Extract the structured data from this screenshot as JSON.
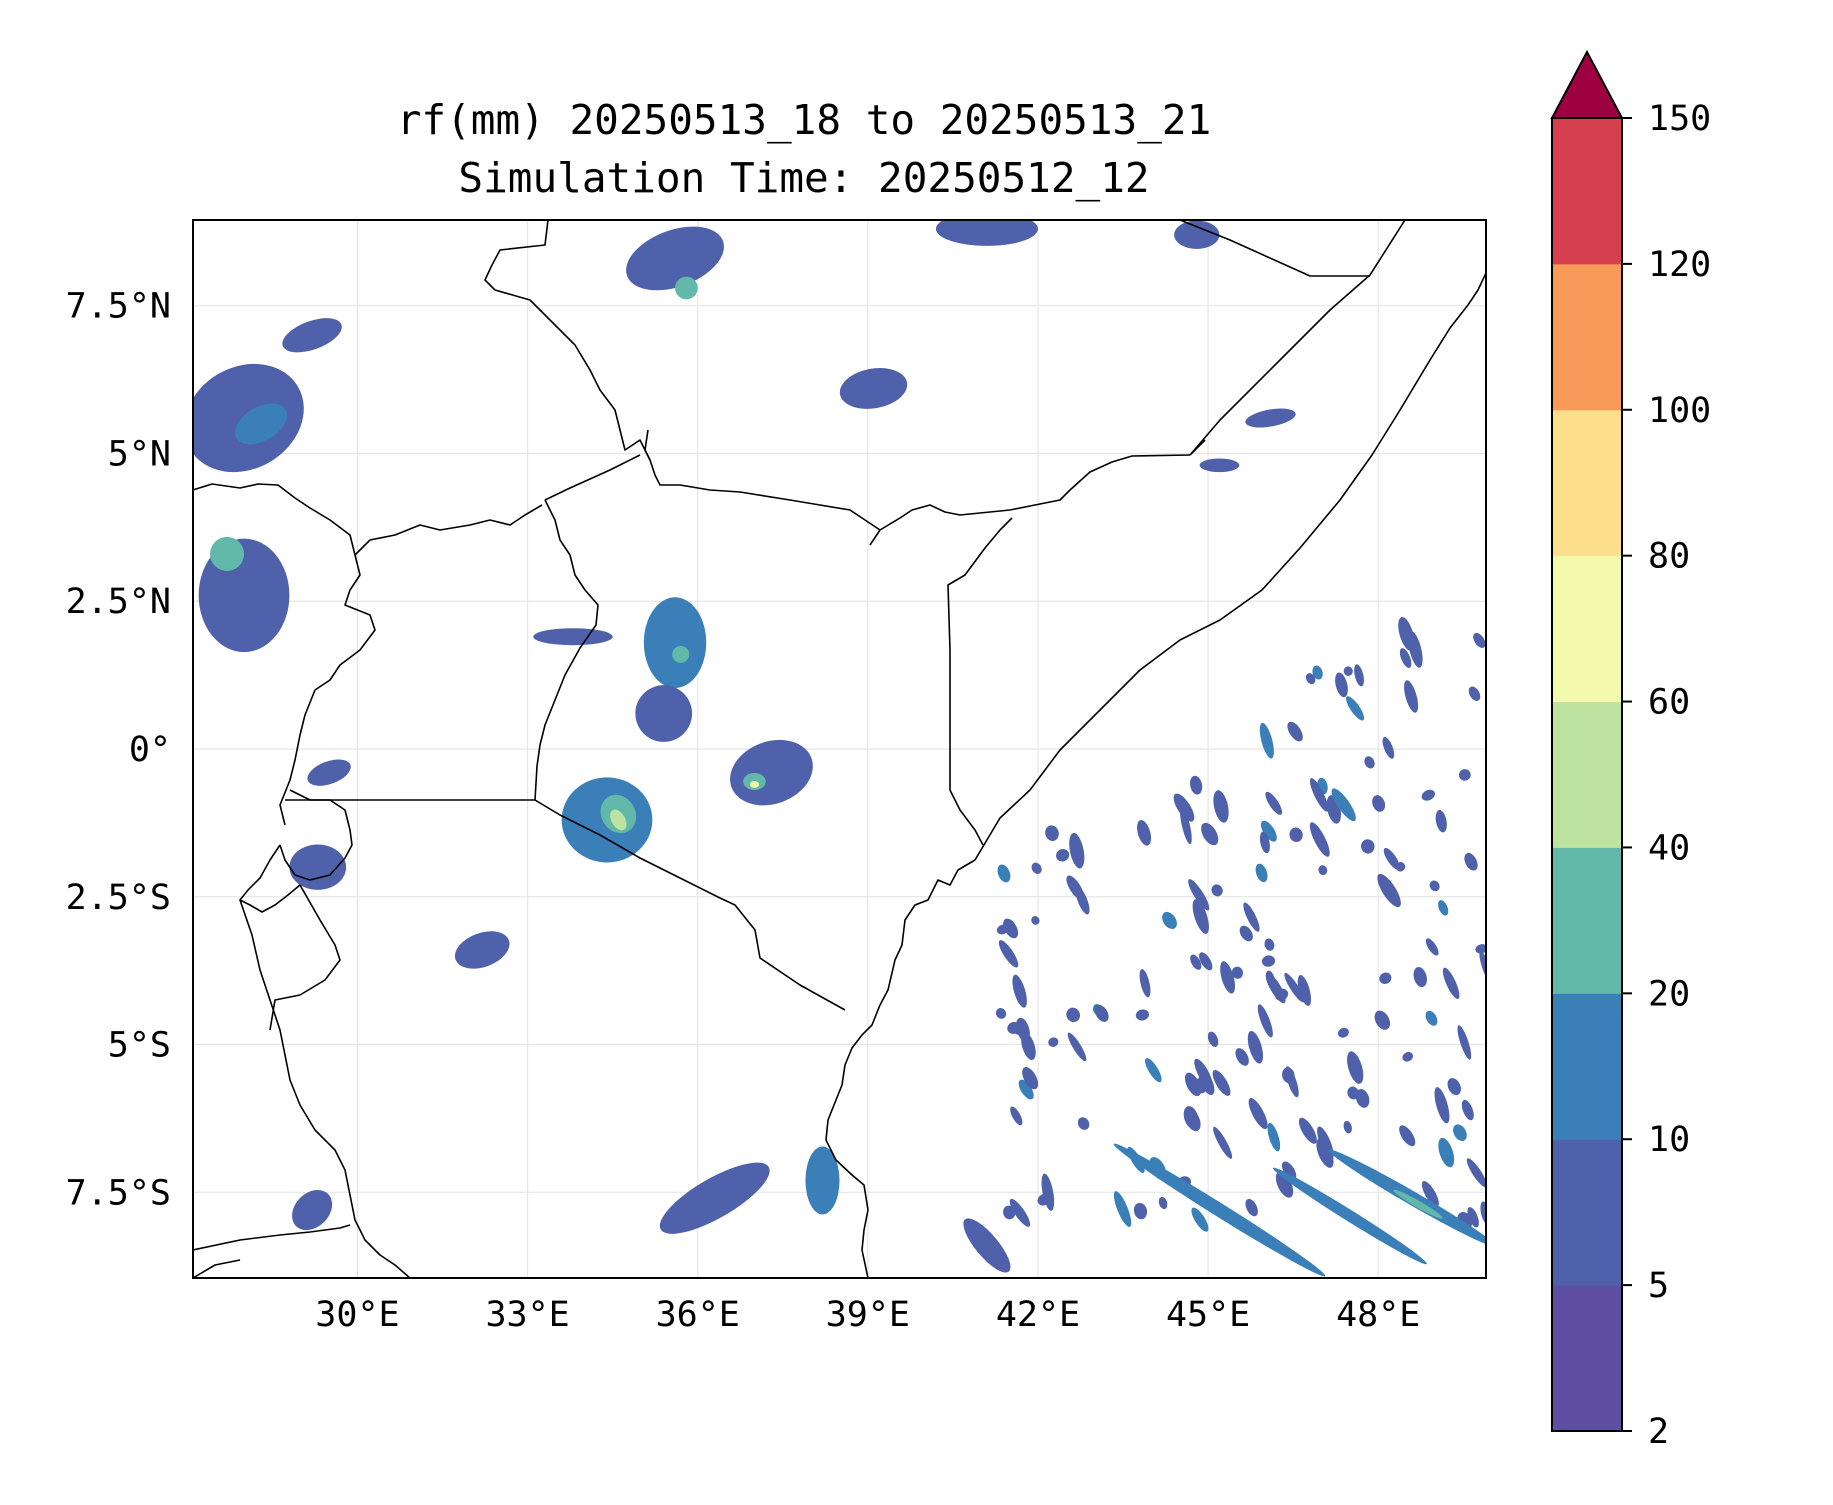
{
  "figure": {
    "title_line1": "rf(mm) 20250513_18 to 20250513_21",
    "title_line2": "Simulation Time: 20250512_12"
  },
  "map": {
    "lon_range": [
      27.1,
      49.9
    ],
    "lat_range": [
      -8.95,
      8.95
    ],
    "lon_ticks": [
      {
        "value": 30,
        "label": "30°E"
      },
      {
        "value": 33,
        "label": "33°E"
      },
      {
        "value": 36,
        "label": "36°E"
      },
      {
        "value": 39,
        "label": "39°E"
      },
      {
        "value": 42,
        "label": "42°E"
      },
      {
        "value": 45,
        "label": "45°E"
      },
      {
        "value": 48,
        "label": "48°E"
      }
    ],
    "lat_ticks": [
      {
        "value": 7.5,
        "label": "7.5°N"
      },
      {
        "value": 5,
        "label": "5°N"
      },
      {
        "value": 2.5,
        "label": "2.5°N"
      },
      {
        "value": 0,
        "label": "0°"
      },
      {
        "value": -2.5,
        "label": "2.5°S"
      },
      {
        "value": -5,
        "label": "5°S"
      },
      {
        "value": -7.5,
        "label": "7.5°S"
      }
    ],
    "gridlines": true,
    "border_color": "#000000"
  },
  "colorbar": {
    "extend": "max",
    "extend_color": "#9e0142",
    "levels": [
      {
        "from": 2,
        "to": 5,
        "color": "#5e4fa2"
      },
      {
        "from": 5,
        "to": 10,
        "color": "#4f61aa"
      },
      {
        "from": 10,
        "to": 20,
        "color": "#3a7fb8"
      },
      {
        "from": 20,
        "to": 40,
        "color": "#62b9a9"
      },
      {
        "from": 40,
        "to": 60,
        "color": "#bee3a0"
      },
      {
        "from": 60,
        "to": 80,
        "color": "#f3faad"
      },
      {
        "from": 80,
        "to": 100,
        "color": "#fddf8b"
      },
      {
        "from": 100,
        "to": 120,
        "color": "#f99b58"
      },
      {
        "from": 120,
        "to": 150,
        "color": "#d6404e"
      }
    ],
    "tick_labels": [
      "2",
      "5",
      "10",
      "20",
      "40",
      "60",
      "80",
      "100",
      "120",
      "150"
    ]
  },
  "chart_data": {
    "type": "heatmap",
    "title": "rf(mm) 20250513_18 to 20250513_21",
    "subtitle": "Simulation Time: 20250512_12",
    "xlim": [
      27.1,
      49.9
    ],
    "ylim": [
      -8.95,
      8.95
    ],
    "rain_cells": [
      {
        "lon": 28.0,
        "lat": 5.6,
        "rx": 1.1,
        "ry": 0.9,
        "angle": -30,
        "level": 1
      },
      {
        "lon": 28.3,
        "lat": 5.5,
        "rx": 0.5,
        "ry": 0.3,
        "angle": -30,
        "level": 2
      },
      {
        "lon": 28.0,
        "lat": 2.6,
        "rx": 0.8,
        "ry": 1.0,
        "angle": 0,
        "level": 1
      },
      {
        "lon": 27.7,
        "lat": 3.3,
        "rx": 0.3,
        "ry": 0.3,
        "angle": 0,
        "level": 3
      },
      {
        "lon": 29.2,
        "lat": 7.0,
        "rx": 0.55,
        "ry": 0.25,
        "angle": -20,
        "level": 1
      },
      {
        "lon": 35.6,
        "lat": 8.3,
        "rx": 0.9,
        "ry": 0.5,
        "angle": -20,
        "level": 1
      },
      {
        "lon": 35.8,
        "lat": 7.8,
        "rx": 0.2,
        "ry": 0.2,
        "angle": 0,
        "level": 3
      },
      {
        "lon": 41.1,
        "lat": 8.8,
        "rx": 0.9,
        "ry": 0.3,
        "angle": 0,
        "level": 1
      },
      {
        "lon": 44.8,
        "lat": 8.7,
        "rx": 0.4,
        "ry": 0.25,
        "angle": 0,
        "level": 1
      },
      {
        "lon": 39.1,
        "lat": 6.1,
        "rx": 0.6,
        "ry": 0.35,
        "angle": -10,
        "level": 1
      },
      {
        "lon": 46.1,
        "lat": 5.6,
        "rx": 0.45,
        "ry": 0.15,
        "angle": -10,
        "level": 1
      },
      {
        "lon": 45.2,
        "lat": 4.8,
        "rx": 0.35,
        "ry": 0.12,
        "angle": 0,
        "level": 1
      },
      {
        "lon": 35.6,
        "lat": 1.8,
        "rx": 0.55,
        "ry": 0.8,
        "angle": 0,
        "level": 2
      },
      {
        "lon": 35.7,
        "lat": 1.6,
        "rx": 0.15,
        "ry": 0.15,
        "angle": 0,
        "level": 3
      },
      {
        "lon": 35.4,
        "lat": 0.6,
        "rx": 0.5,
        "ry": 0.5,
        "angle": 0,
        "level": 1
      },
      {
        "lon": 34.4,
        "lat": -1.2,
        "rx": 0.8,
        "ry": 0.75,
        "angle": 0,
        "level": 2
      },
      {
        "lon": 34.6,
        "lat": -1.1,
        "rx": 0.3,
        "ry": 0.35,
        "angle": -30,
        "level": 3
      },
      {
        "lon": 34.6,
        "lat": -1.2,
        "rx": 0.12,
        "ry": 0.2,
        "angle": -30,
        "level": 4
      },
      {
        "lon": 37.3,
        "lat": -0.4,
        "rx": 0.75,
        "ry": 0.55,
        "angle": -20,
        "level": 1
      },
      {
        "lon": 37.0,
        "lat": -0.55,
        "rx": 0.2,
        "ry": 0.15,
        "angle": 0,
        "level": 3
      },
      {
        "lon": 37.0,
        "lat": -0.6,
        "rx": 0.08,
        "ry": 0.06,
        "angle": 0,
        "level": 5
      },
      {
        "lon": 33.8,
        "lat": 1.9,
        "rx": 0.7,
        "ry": 0.15,
        "angle": 0,
        "level": 1
      },
      {
        "lon": 29.3,
        "lat": -2.0,
        "rx": 0.5,
        "ry": 0.4,
        "angle": 0,
        "level": 1
      },
      {
        "lon": 29.5,
        "lat": -0.4,
        "rx": 0.4,
        "ry": 0.2,
        "angle": -20,
        "level": 1
      },
      {
        "lon": 32.2,
        "lat": -3.4,
        "rx": 0.5,
        "ry": 0.3,
        "angle": -20,
        "level": 1
      },
      {
        "lon": 36.3,
        "lat": -7.6,
        "rx": 1.1,
        "ry": 0.35,
        "angle": -30,
        "level": 1
      },
      {
        "lon": 29.2,
        "lat": -7.8,
        "rx": 0.4,
        "ry": 0.3,
        "angle": -45,
        "level": 1
      },
      {
        "lon": 38.2,
        "lat": -7.3,
        "rx": 0.3,
        "ry": 0.6,
        "angle": 0,
        "level": 2
      },
      {
        "lon": 41.1,
        "lat": -8.4,
        "rx": 0.6,
        "ry": 0.2,
        "angle": 50,
        "level": 1
      },
      {
        "lon": 45.2,
        "lat": -7.8,
        "rx": 2.2,
        "ry": 0.12,
        "angle": 32,
        "level": 2
      },
      {
        "lon": 47.5,
        "lat": -7.9,
        "rx": 1.6,
        "ry": 0.1,
        "angle": 32,
        "level": 2
      },
      {
        "lon": 48.6,
        "lat": -7.6,
        "rx": 1.7,
        "ry": 0.12,
        "angle": 30,
        "level": 2
      },
      {
        "lon": 48.7,
        "lat": -7.7,
        "rx": 0.5,
        "ry": 0.06,
        "angle": 30,
        "level": 3
      }
    ],
    "swell_band": {
      "lon_range": [
        40.5,
        50.0
      ],
      "lat_range": [
        -8.0,
        2.0
      ],
      "level": 1
    }
  }
}
